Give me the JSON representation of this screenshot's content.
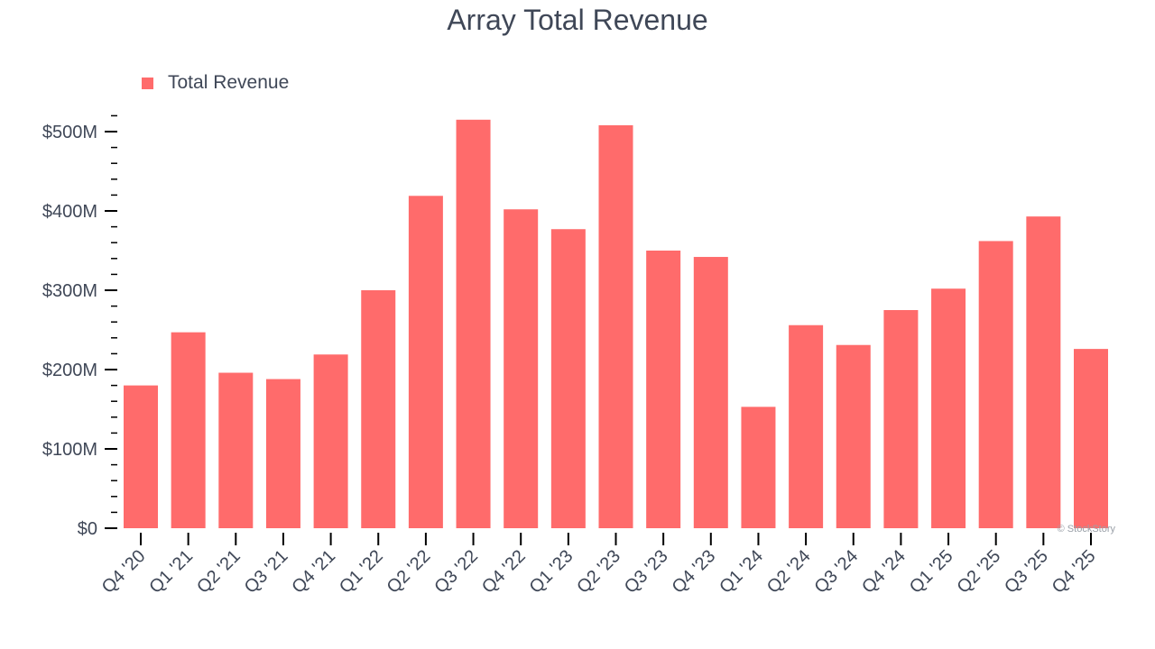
{
  "colors": {
    "bar": "#ff6b6b",
    "text": "#3f4757",
    "axis": "#000000"
  },
  "watermark": "© StockStory",
  "chart_data": {
    "type": "bar",
    "title": "Array Total Revenue",
    "xlabel": "",
    "ylabel": "",
    "legend": {
      "position": "top-left",
      "entries": [
        "Total Revenue"
      ]
    },
    "grid": false,
    "ylim": [
      0,
      525
    ],
    "y_ticks": [
      0,
      100,
      200,
      300,
      400,
      500
    ],
    "y_tick_labels": [
      "$0",
      "$100M",
      "$200M",
      "$300M",
      "$400M",
      "$500M"
    ],
    "y_minor_step": 20,
    "categories": [
      "Q4 '20",
      "Q1 '21",
      "Q2 '21",
      "Q3 '21",
      "Q4 '21",
      "Q1 '22",
      "Q2 '22",
      "Q3 '22",
      "Q4 '22",
      "Q1 '23",
      "Q2 '23",
      "Q3 '23",
      "Q4 '23",
      "Q1 '24",
      "Q2 '24",
      "Q3 '24",
      "Q4 '24",
      "Q1 '25",
      "Q2 '25",
      "Q3 '25",
      "Q4 '25"
    ],
    "series": [
      {
        "name": "Total Revenue",
        "values": [
          180,
          247,
          196,
          188,
          219,
          300,
          419,
          515,
          402,
          377,
          508,
          350,
          342,
          153,
          256,
          231,
          275,
          302,
          362,
          393,
          226
        ]
      }
    ]
  }
}
